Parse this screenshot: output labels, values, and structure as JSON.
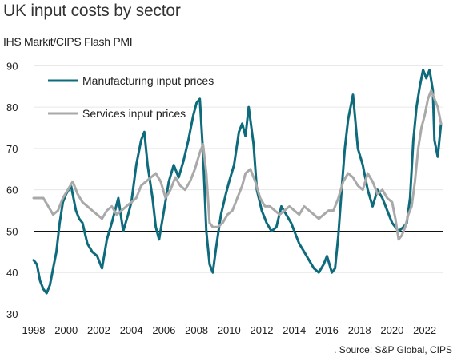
{
  "title": "UK input costs by sector",
  "subtitle": "IHS Markit/CIPS Flash PMI",
  "source": ". Source: S&P Global, CIPS",
  "colors": {
    "manufacturing": "#0e6b7c",
    "services": "#a9a9a9",
    "reference_line": "#111111"
  },
  "chart_data": {
    "type": "line",
    "title": "UK input costs by sector",
    "subtitle": "IHS Markit/CIPS Flash PMI",
    "xlabel": "",
    "ylabel": "",
    "xlim": [
      1998,
      2023.1
    ],
    "ylim": [
      30,
      92
    ],
    "x_ticks": [
      1998,
      2000,
      2002,
      2004,
      2006,
      2008,
      2010,
      2012,
      2014,
      2016,
      2018,
      2020,
      2022
    ],
    "y_ticks": [
      30,
      40,
      50,
      60,
      70,
      80,
      90
    ],
    "reference_line": 50,
    "grid": "horizontal",
    "legend_position": "top-left",
    "series": [
      {
        "name": "Manufacturing input prices",
        "color": "#0e6b7c",
        "x": [
          1998.0,
          1998.2,
          1998.4,
          1998.6,
          1998.8,
          1999.0,
          1999.2,
          1999.4,
          1999.6,
          1999.8,
          2000.0,
          2000.3,
          2000.6,
          2000.8,
          2001.0,
          2001.3,
          2001.6,
          2001.9,
          2002.2,
          2002.5,
          2002.8,
          2003.0,
          2003.2,
          2003.5,
          2003.8,
          2004.0,
          2004.3,
          2004.6,
          2004.8,
          2005.0,
          2005.3,
          2005.5,
          2005.7,
          2006.0,
          2006.3,
          2006.6,
          2006.9,
          2007.2,
          2007.5,
          2007.8,
          2008.0,
          2008.2,
          2008.4,
          2008.6,
          2008.8,
          2009.0,
          2009.2,
          2009.5,
          2009.8,
          2010.0,
          2010.3,
          2010.6,
          2010.8,
          2011.0,
          2011.2,
          2011.5,
          2011.7,
          2012.0,
          2012.3,
          2012.6,
          2012.9,
          2013.2,
          2013.5,
          2013.8,
          2014.0,
          2014.3,
          2014.6,
          2014.9,
          2015.2,
          2015.5,
          2015.8,
          2016.0,
          2016.3,
          2016.5,
          2016.7,
          2016.9,
          2017.1,
          2017.3,
          2017.6,
          2017.9,
          2018.2,
          2018.5,
          2018.8,
          2019.1,
          2019.4,
          2019.7,
          2020.0,
          2020.2,
          2020.4,
          2020.7,
          2020.9,
          2021.1,
          2021.3,
          2021.5,
          2021.7,
          2021.9,
          2022.1,
          2022.3,
          2022.5,
          2022.6,
          2022.8,
          2023.0
        ],
        "values": [
          43,
          42,
          38,
          36,
          35,
          37,
          41,
          45,
          52,
          57,
          59,
          61,
          55,
          53,
          52,
          47,
          45,
          44,
          41,
          48,
          52,
          55,
          58,
          50,
          54,
          57,
          66,
          72,
          74,
          66,
          58,
          51,
          48,
          55,
          62,
          66,
          63,
          67,
          72,
          78,
          81,
          82,
          69,
          50,
          42,
          40,
          46,
          54,
          59,
          62,
          66,
          74,
          76,
          73,
          80,
          71,
          60,
          55,
          52,
          50,
          51,
          56,
          54,
          52,
          50,
          47,
          45,
          43,
          41,
          40,
          42,
          44,
          40,
          41,
          49,
          60,
          70,
          77,
          83,
          70,
          66,
          60,
          56,
          60,
          58,
          55,
          52,
          51,
          50,
          51,
          52,
          58,
          72,
          80,
          85,
          89,
          87,
          89,
          84,
          72,
          68,
          76
        ]
      },
      {
        "name": "Services input prices",
        "color": "#a9a9a9",
        "x": [
          1998.0,
          1998.3,
          1998.6,
          1998.9,
          1999.2,
          1999.5,
          1999.8,
          2000.1,
          2000.4,
          2000.7,
          2001.0,
          2001.3,
          2001.6,
          2001.9,
          2002.2,
          2002.5,
          2002.8,
          2003.1,
          2003.4,
          2003.7,
          2004.0,
          2004.3,
          2004.6,
          2004.9,
          2005.2,
          2005.5,
          2005.8,
          2006.1,
          2006.4,
          2006.7,
          2007.0,
          2007.3,
          2007.6,
          2007.9,
          2008.2,
          2008.4,
          2008.6,
          2008.8,
          2009.0,
          2009.3,
          2009.6,
          2009.9,
          2010.2,
          2010.5,
          2010.8,
          2011.0,
          2011.3,
          2011.6,
          2011.9,
          2012.2,
          2012.5,
          2012.8,
          2013.1,
          2013.4,
          2013.7,
          2014.0,
          2014.3,
          2014.6,
          2014.9,
          2015.2,
          2015.5,
          2015.8,
          2016.1,
          2016.4,
          2016.7,
          2017.0,
          2017.3,
          2017.6,
          2017.9,
          2018.2,
          2018.5,
          2018.8,
          2019.1,
          2019.4,
          2019.7,
          2020.0,
          2020.2,
          2020.4,
          2020.6,
          2020.8,
          2021.0,
          2021.2,
          2021.4,
          2021.6,
          2021.8,
          2022.0,
          2022.2,
          2022.4,
          2022.6,
          2022.8,
          2023.0
        ],
        "values": [
          58,
          58,
          58,
          56,
          54,
          55,
          58,
          60,
          62,
          59,
          57,
          56,
          55,
          54,
          53,
          55,
          56,
          54,
          55,
          56,
          57,
          58,
          61,
          62,
          63,
          64,
          62,
          58,
          60,
          63,
          61,
          60,
          62,
          65,
          69,
          71,
          64,
          52,
          51,
          51,
          52,
          54,
          55,
          58,
          61,
          64,
          65,
          62,
          58,
          56,
          56,
          55,
          54,
          55,
          56,
          55,
          54,
          56,
          55,
          54,
          53,
          54,
          55,
          55,
          58,
          62,
          64,
          63,
          61,
          60,
          64,
          62,
          59,
          60,
          58,
          57,
          53,
          48,
          49,
          51,
          54,
          56,
          62,
          70,
          75,
          78,
          82,
          84,
          82,
          80,
          76
        ]
      }
    ]
  }
}
